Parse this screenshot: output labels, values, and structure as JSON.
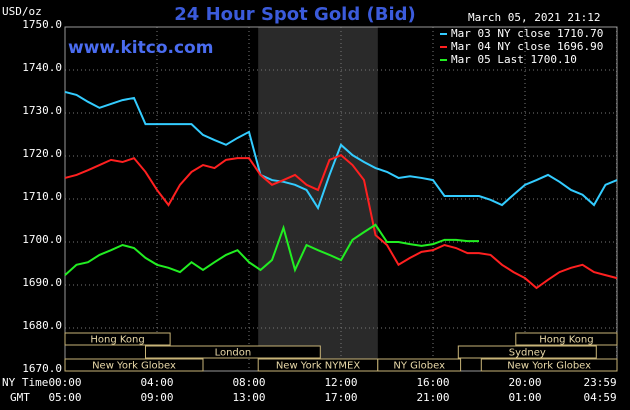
{
  "chart_data": {
    "type": "line",
    "title": "24 Hour Spot Gold (Bid)",
    "y_unit": "USD/oz",
    "timestamp": "March 05, 2021 21:12",
    "site": "www.kitco.com",
    "x_axis_labels": [
      "NY Time",
      "GMT"
    ],
    "xlim": [
      0,
      24
    ],
    "xticks": [
      {
        "value": 0,
        "label": "00:00"
      },
      {
        "value": 4,
        "label": "04:00"
      },
      {
        "value": 8,
        "label": "08:00"
      },
      {
        "value": 12,
        "label": "12:00"
      },
      {
        "value": 16,
        "label": "16:00"
      },
      {
        "value": 20,
        "label": "20:00"
      },
      {
        "value": 23.983,
        "label": "23:59"
      }
    ],
    "gmt_tick_labels": [
      "05:00",
      "09:00",
      "13:00",
      "17:00",
      "21:00",
      "01:00",
      "04:59"
    ],
    "ylim": [
      1670,
      1750
    ],
    "yticks": [
      {
        "value": 1670,
        "label": "1670.0"
      },
      {
        "value": 1680,
        "label": "1680.0"
      },
      {
        "value": 1690,
        "label": "1690.0"
      },
      {
        "value": 1700,
        "label": "1700.0"
      },
      {
        "value": 1710,
        "label": "1710.0"
      },
      {
        "value": 1720,
        "label": "1720.0"
      },
      {
        "value": 1730,
        "label": "1730.0"
      },
      {
        "value": 1740,
        "label": "1740.0"
      },
      {
        "value": 1750,
        "label": "1750.0"
      }
    ],
    "grid": true,
    "x": [
      0,
      0.5,
      1,
      1.5,
      2,
      2.5,
      3,
      3.5,
      4,
      4.5,
      5,
      5.5,
      6,
      6.5,
      7,
      7.5,
      8,
      8.5,
      9,
      9.5,
      10,
      10.5,
      11,
      11.5,
      12,
      12.5,
      13,
      13.5,
      14,
      14.5,
      15,
      15.5,
      16,
      16.5,
      17,
      17.5,
      18,
      18.5,
      19,
      19.5,
      20,
      20.5,
      21,
      21.5,
      22,
      22.5,
      23,
      23.5,
      24
    ],
    "series": [
      {
        "name": "Mar 03 NY close 1710.70",
        "color": "#33ccff",
        "values": [
          1734.9,
          1734.2,
          1732.6,
          1731.2,
          1732.1,
          1733.0,
          1733.5,
          1727.4,
          1727.4,
          1727.4,
          1727.4,
          1727.4,
          1724.9,
          1723.7,
          1722.6,
          1724.2,
          1725.6,
          1715.6,
          1714.4,
          1714.0,
          1713.3,
          1712.1,
          1707.9,
          1715.6,
          1722.6,
          1720.2,
          1718.6,
          1717.2,
          1716.3,
          1714.9,
          1715.3,
          1714.9,
          1714.4,
          1710.7,
          1710.7,
          1710.7,
          1710.7,
          1709.8,
          1708.6,
          1711.0,
          1713.3,
          1714.4,
          1715.6,
          1714.0,
          1712.1,
          1711.0,
          1708.6,
          1713.3,
          1714.4
        ]
      },
      {
        "name": "Mar 04 NY close 1696.90",
        "color": "#ff2020",
        "values": [
          1714.9,
          1715.6,
          1716.7,
          1717.9,
          1719.1,
          1718.6,
          1719.5,
          1716.3,
          1712.1,
          1708.6,
          1713.3,
          1716.3,
          1717.9,
          1717.2,
          1719.1,
          1719.5,
          1719.5,
          1715.6,
          1713.3,
          1714.4,
          1715.6,
          1713.3,
          1712.1,
          1719.1,
          1720.2,
          1717.9,
          1714.4,
          1701.6,
          1699.3,
          1694.7,
          1696.3,
          1697.7,
          1698.1,
          1699.3,
          1698.6,
          1697.4,
          1697.4,
          1697.0,
          1694.7,
          1693.0,
          1691.6,
          1689.3,
          1691.2,
          1693.0,
          1694.0,
          1694.7,
          1693.0,
          1692.3,
          1691.6
        ]
      },
      {
        "name": "Mar 05 Last 1700.10",
        "color": "#22ee22",
        "values": [
          1692.3,
          1694.7,
          1695.3,
          1697.0,
          1698.1,
          1699.3,
          1698.6,
          1696.3,
          1694.7,
          1694.0,
          1693.0,
          1695.3,
          1693.5,
          1695.3,
          1697.0,
          1698.1,
          1695.3,
          1693.5,
          1695.8,
          1703.3,
          1693.5,
          1699.3,
          1698.1,
          1697.0,
          1695.8,
          1700.5,
          1702.3,
          1704.0,
          1700.0,
          1700.0,
          1699.5,
          1699.1,
          1699.5,
          1700.5,
          1700.5,
          1700.2,
          1700.2,
          null,
          null,
          null,
          null,
          null,
          null,
          null,
          null,
          null,
          null,
          null,
          null
        ]
      }
    ],
    "sessions": [
      [
        {
          "label": "Hong Kong",
          "start": 0,
          "end": 4.57
        },
        {
          "label": "Hong Kong",
          "start": 19.6,
          "end": 24
        }
      ],
      [
        {
          "label": "London",
          "start": 3.5,
          "end": 11.1
        },
        {
          "label": "Sydney",
          "start": 17.1,
          "end": 23.1
        }
      ],
      [
        {
          "label": "New York Globex",
          "start": 0,
          "end": 6
        },
        {
          "label": "New York NYMEX",
          "start": 8.4,
          "end": 13.6
        },
        {
          "label": "NY Globex",
          "start": 13.6,
          "end": 17.2
        },
        {
          "label": "New York Globex",
          "start": 18.1,
          "end": 24
        }
      ]
    ]
  }
}
